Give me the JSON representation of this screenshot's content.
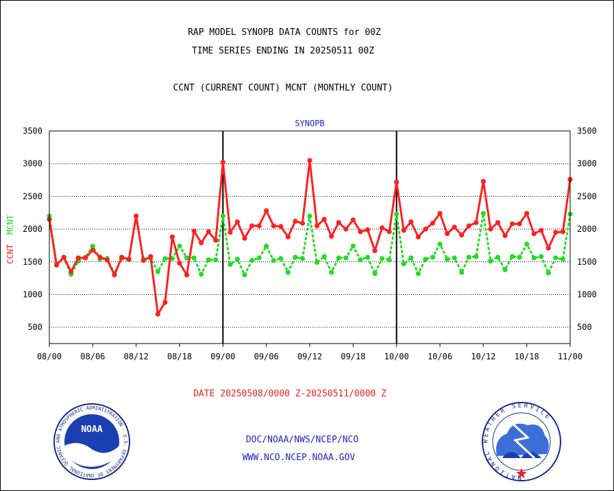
{
  "header": {
    "line1": "RAP MODEL SYNOPB DATA COUNTS for 00Z",
    "line2": "TIME SERIES ENDING IN 20250511 00Z",
    "line3": "CCNT (CURRENT COUNT) MCNT (MONTHLY COUNT)"
  },
  "footer": {
    "date_range": "DATE 20250508/0000 Z-20250511/0000 Z",
    "org_line": "DOC/NOAA/NWS/NCEP/NCO",
    "website": "WWW.NCO.NCEP.NOAA.GOV"
  },
  "logos": {
    "noaa_text": "NOAA",
    "noaa_ring": "NATIONAL OCEANIC AND ATMOSPHERIC ADMINISTRATION · U.S. DEPARTMENT OF COMMERCE",
    "nws_ring": "NATIONAL WEATHER SERVICE"
  },
  "colors": {
    "ccnt": "#ff2020",
    "mcnt": "#22dd22",
    "frame": "#000000",
    "title_blue": "#2222cc",
    "date_red": "#ee2020"
  },
  "chart_data": {
    "type": "line",
    "title": "SYNOPB",
    "ylabel_left": [
      "CCNT",
      "MCNT"
    ],
    "ylim": [
      250,
      3500
    ],
    "yticks": [
      500,
      1000,
      1500,
      2000,
      2500,
      3000,
      3500
    ],
    "xlim": [
      0,
      72
    ],
    "xticks": [
      {
        "x": 0,
        "label": "08/00"
      },
      {
        "x": 6,
        "label": "08/06"
      },
      {
        "x": 12,
        "label": "08/12"
      },
      {
        "x": 18,
        "label": "08/18"
      },
      {
        "x": 24,
        "label": "09/00"
      },
      {
        "x": 30,
        "label": "09/06"
      },
      {
        "x": 36,
        "label": "09/12"
      },
      {
        "x": 42,
        "label": "09/18"
      },
      {
        "x": 48,
        "label": "10/00"
      },
      {
        "x": 54,
        "label": "10/06"
      },
      {
        "x": 60,
        "label": "10/12"
      },
      {
        "x": 66,
        "label": "10/18"
      },
      {
        "x": 72,
        "label": "11/00"
      }
    ],
    "day_dividers": [
      24,
      48
    ],
    "grid": "horizontal-dotted",
    "series": [
      {
        "name": "CCNT",
        "style": "solid",
        "x": [
          0,
          1,
          2,
          3,
          4,
          5,
          6,
          7,
          8,
          9,
          10,
          11,
          12,
          13,
          14,
          15,
          16,
          17,
          18,
          19,
          20,
          21,
          22,
          23,
          24,
          25,
          26,
          27,
          28,
          29,
          30,
          31,
          32,
          33,
          34,
          35,
          36,
          37,
          38,
          39,
          40,
          41,
          42,
          43,
          44,
          45,
          46,
          47,
          48,
          49,
          50,
          51,
          52,
          53,
          54,
          55,
          56,
          57,
          58,
          59,
          60,
          61,
          62,
          63,
          64,
          65,
          66,
          67,
          68,
          69,
          70,
          71,
          72
        ],
        "values": [
          2150,
          1450,
          1570,
          1350,
          1560,
          1560,
          1680,
          1570,
          1530,
          1300,
          1570,
          1540,
          2200,
          1520,
          1580,
          700,
          880,
          1880,
          1480,
          1300,
          1970,
          1790,
          1960,
          1830,
          3020,
          1950,
          2110,
          1860,
          2050,
          2050,
          2280,
          2050,
          2040,
          1880,
          2120,
          2090,
          3050,
          2050,
          2150,
          1890,
          2100,
          2000,
          2140,
          1960,
          1990,
          1670,
          2020,
          1960,
          2720,
          1980,
          2110,
          1880,
          2000,
          2090,
          2240,
          1930,
          2030,
          1910,
          2050,
          2100,
          2730,
          2000,
          2100,
          1900,
          2080,
          2080,
          2240,
          1930,
          1980,
          1710,
          1950,
          1960,
          2760
        ]
      },
      {
        "name": "MCNT",
        "style": "dotted",
        "x": [
          0,
          1,
          2,
          3,
          4,
          5,
          6,
          7,
          8,
          9,
          10,
          11,
          12,
          13,
          14,
          15,
          16,
          17,
          18,
          19,
          20,
          21,
          22,
          23,
          24,
          25,
          26,
          27,
          28,
          29,
          30,
          31,
          32,
          33,
          34,
          35,
          36,
          37,
          38,
          39,
          40,
          41,
          42,
          43,
          44,
          45,
          46,
          47,
          48,
          49,
          50,
          51,
          52,
          53,
          54,
          55,
          56,
          57,
          58,
          59,
          60,
          61,
          62,
          63,
          64,
          65,
          66,
          67,
          68,
          69,
          70,
          71,
          72
        ],
        "values": [
          2200,
          1470,
          1560,
          1310,
          1510,
          1570,
          1740,
          1540,
          1550,
          1320,
          1550,
          1530,
          2200,
          1540,
          1550,
          1350,
          1550,
          1550,
          1740,
          1560,
          1560,
          1310,
          1530,
          1530,
          2200,
          1460,
          1540,
          1300,
          1520,
          1560,
          1740,
          1520,
          1550,
          1340,
          1570,
          1550,
          2200,
          1490,
          1580,
          1340,
          1560,
          1560,
          1740,
          1530,
          1570,
          1320,
          1550,
          1530,
          2230,
          1470,
          1560,
          1320,
          1540,
          1570,
          1770,
          1540,
          1560,
          1340,
          1570,
          1580,
          2240,
          1510,
          1570,
          1380,
          1580,
          1570,
          1770,
          1560,
          1580,
          1330,
          1560,
          1540,
          2230
        ]
      }
    ]
  }
}
